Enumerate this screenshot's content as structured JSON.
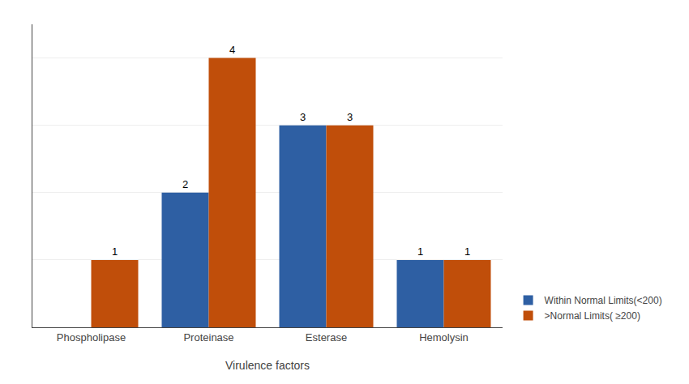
{
  "chart_data": {
    "type": "bar",
    "categories": [
      "Phospholipase",
      "Proteinase",
      "Esterase",
      "Hemolysin"
    ],
    "series": [
      {
        "name": "Within Normal Limits(<200)",
        "color": "#2E5FA3",
        "values": [
          0,
          2,
          3,
          1
        ],
        "value_labels": [
          null,
          "2",
          "3",
          "1"
        ]
      },
      {
        "name": ">Normal Limits( ≥200)",
        "color": "#C04E0A",
        "values": [
          1,
          4,
          3,
          1
        ]
      }
    ],
    "xlabel": "Virulence factors",
    "ylim": [
      0,
      4.5
    ],
    "yticks": [
      1,
      2,
      3,
      4
    ],
    "grid": true,
    "legend": "lower right",
    "data_labels": true,
    "tick_labels": "x"
  }
}
